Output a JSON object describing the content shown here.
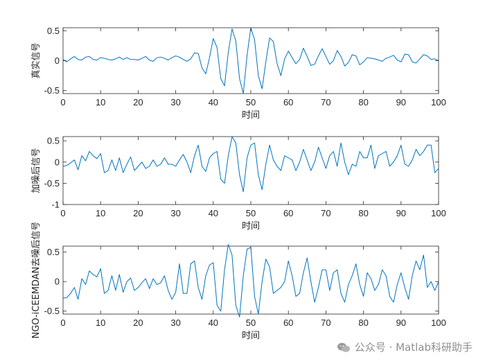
{
  "chart_data": [
    {
      "type": "line",
      "xlabel": "时间",
      "ylabel": "真实信号",
      "xlim": [
        0,
        100
      ],
      "ylim": [
        -0.55,
        0.55
      ],
      "xticks": [
        0,
        10,
        20,
        30,
        40,
        50,
        60,
        70,
        80,
        90,
        100
      ],
      "yticks": [
        0.5,
        0,
        -0.5
      ],
      "ytick_labels": [
        "0.5",
        "0",
        "-0.5"
      ],
      "grid": false,
      "line_color": "#0072BD",
      "values": [
        0.02,
        -0.02,
        0.03,
        0.07,
        0.02,
        0.01,
        0.06,
        0.07,
        0.02,
        0.01,
        0.05,
        0.04,
        0.02,
        0.01,
        0.03,
        0.06,
        0.02,
        0.05,
        0.02,
        0.02,
        0.01,
        0.04,
        0.07,
        0.01,
        -0.01,
        0.05,
        0.06,
        0.04,
        0.01,
        0.05,
        0.08,
        0.06,
        0.02,
        -0.01,
        0.03,
        0.13,
        0.12,
        -0.12,
        -0.22,
        0.05,
        0.37,
        0.22,
        -0.3,
        -0.42,
        0.14,
        0.53,
        0.33,
        -0.3,
        -0.55,
        0.09,
        0.55,
        0.35,
        -0.25,
        -0.47,
        -0.02,
        0.38,
        0.32,
        -0.05,
        -0.25,
        0.03,
        0.16,
        0.05,
        -0.05,
        0.02,
        0.21,
        0.07,
        -0.08,
        -0.06,
        0.08,
        0.2,
        0.07,
        -0.06,
        0.0,
        0.17,
        0.07,
        -0.09,
        -0.03,
        0.1,
        0.08,
        -0.07,
        -0.02,
        0.05,
        0.04,
        0.03,
        0.01,
        -0.01,
        0.04,
        0.06,
        0.09,
        0.01,
        -0.02,
        0.11,
        0.1,
        -0.02,
        -0.04,
        0.03,
        0.1,
        0.08,
        0.02,
        0.03,
        0.0
      ]
    },
    {
      "type": "line",
      "xlabel": "时间",
      "ylabel": "加噪后信号",
      "xlim": [
        0,
        100
      ],
      "ylim": [
        -1,
        0.6
      ],
      "xticks": [
        0,
        10,
        20,
        30,
        40,
        50,
        60,
        70,
        80,
        90,
        100
      ],
      "yticks": [
        0.5,
        0,
        -0.5,
        -1
      ],
      "ytick_labels": [
        "0.5",
        "0",
        "-0.5",
        "-1"
      ],
      "grid": false,
      "line_color": "#0072BD",
      "values": [
        -0.1,
        -0.08,
        -0.02,
        0.05,
        -0.18,
        0.15,
        0.03,
        0.25,
        0.15,
        0.08,
        0.2,
        -0.25,
        -0.2,
        0.05,
        -0.2,
        0.1,
        -0.25,
        -0.05,
        0.12,
        -0.2,
        -0.1,
        0.0,
        -0.15,
        -0.1,
        0.05,
        -0.1,
        -0.05,
        0.1,
        -0.05,
        -0.05,
        -0.1,
        0.05,
        0.18,
        0.0,
        -0.25,
        0.15,
        0.4,
        -0.1,
        -0.22,
        0.1,
        0.2,
        0.25,
        -0.4,
        -0.5,
        0.15,
        0.6,
        0.45,
        -0.3,
        -0.7,
        0.1,
        0.4,
        0.45,
        -0.3,
        -0.65,
        -0.05,
        0.4,
        0.05,
        -0.1,
        -0.2,
        0.15,
        0.1,
        0.05,
        -0.2,
        0.0,
        0.3,
        0.05,
        -0.2,
        0.0,
        0.35,
        0.1,
        -0.15,
        0.15,
        0.25,
        -0.1,
        0.45,
        0.0,
        -0.3,
        -0.05,
        -0.1,
        0.25,
        0.1,
        0.1,
        0.4,
        -0.15,
        0.15,
        0.2,
        0.25,
        -0.1,
        0.0,
        0.15,
        0.4,
        -0.05,
        -0.1,
        0.05,
        0.3,
        0.15,
        0.25,
        0.4,
        0.4,
        -0.25,
        -0.15
      ]
    },
    {
      "type": "line",
      "xlabel": "时间",
      "ylabel": "NGO-iCEEMDAN去噪后信号",
      "xlim": [
        0,
        100
      ],
      "ylim": [
        -0.55,
        0.6
      ],
      "xticks": [
        0,
        10,
        20,
        30,
        40,
        50,
        60,
        70,
        80,
        90,
        100
      ],
      "yticks": [
        0.5,
        0,
        -0.5
      ],
      "ytick_labels": [
        "0.5",
        "0",
        "-0.5"
      ],
      "grid": false,
      "line_color": "#0072BD",
      "values": [
        -0.28,
        -0.27,
        -0.2,
        -0.1,
        -0.3,
        0.05,
        -0.05,
        0.18,
        0.12,
        0.08,
        0.22,
        -0.2,
        -0.15,
        0.1,
        -0.15,
        0.12,
        -0.18,
        0.0,
        0.06,
        -0.15,
        -0.1,
        -0.02,
        0.05,
        -0.12,
        0.05,
        -0.05,
        -0.02,
        0.1,
        -0.15,
        -0.3,
        -0.18,
        0.3,
        -0.2,
        -0.2,
        0.3,
        0.35,
        -0.1,
        -0.3,
        0.1,
        0.28,
        0.32,
        -0.4,
        -0.5,
        0.2,
        0.63,
        0.45,
        -0.4,
        -0.6,
        0.1,
        0.55,
        0.58,
        -0.25,
        -0.55,
        0.0,
        0.38,
        0.25,
        -0.2,
        -0.15,
        -0.1,
        0.0,
        0.35,
        0.1,
        -0.25,
        -0.2,
        0.15,
        0.4,
        0.0,
        -0.35,
        -0.1,
        0.2,
        0.2,
        -0.15,
        0.15,
        0.2,
        -0.2,
        -0.35,
        -0.05,
        0.1,
        0.3,
        -0.05,
        -0.25,
        0.15,
        0.05,
        -0.15,
        -0.05,
        0.2,
        0.1,
        -0.25,
        -0.35,
        -0.05,
        0.15,
        -0.1,
        -0.3,
        0.1,
        0.35,
        0.2,
        0.45,
        -0.1,
        0.0,
        -0.15,
        0.0
      ]
    }
  ],
  "watermark": {
    "text": "公众号 · Matlab科研助手",
    "icon": "wechat-icon",
    "color": "#8f8f8f"
  }
}
